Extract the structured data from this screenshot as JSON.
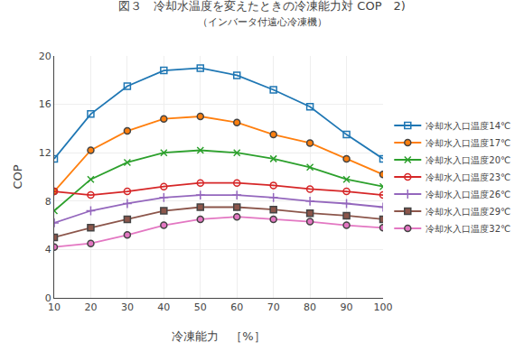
{
  "chart_data": {
    "type": "line",
    "title": "図３　冷却水温度を変えたときの冷凍能力対 COP　2)",
    "subtitle": "（インバータ付遠心冷凍機）",
    "xlabel": "冷凍能力　［%］",
    "ylabel": "COP",
    "x": [
      10,
      20,
      30,
      40,
      50,
      60,
      70,
      80,
      90,
      100
    ],
    "series": [
      {
        "name": "冷却水入口温度14℃",
        "marker": "square-open",
        "values": [
          11.5,
          15.2,
          17.5,
          18.8,
          19.0,
          18.4,
          17.2,
          15.8,
          13.5,
          11.5
        ]
      },
      {
        "name": "冷却水入口温度17℃",
        "marker": "circle",
        "values": [
          8.8,
          12.2,
          13.8,
          14.8,
          15.0,
          14.5,
          13.5,
          12.8,
          11.5,
          10.2
        ]
      },
      {
        "name": "冷却水入口温度20℃",
        "marker": "x",
        "values": [
          7.2,
          9.8,
          11.2,
          12.0,
          12.2,
          12.0,
          11.5,
          10.8,
          9.8,
          9.2
        ]
      },
      {
        "name": "冷却水入口温度23℃",
        "marker": "circle-open",
        "values": [
          8.8,
          8.5,
          8.8,
          9.2,
          9.5,
          9.5,
          9.3,
          9.0,
          8.8,
          8.5
        ]
      },
      {
        "name": "冷却水入口温度26℃",
        "marker": "cross",
        "values": [
          6.2,
          7.2,
          7.8,
          8.3,
          8.5,
          8.5,
          8.3,
          8.0,
          7.8,
          7.5
        ]
      },
      {
        "name": "冷却水入口温度29℃",
        "marker": "square",
        "values": [
          5.0,
          5.8,
          6.5,
          7.2,
          7.5,
          7.5,
          7.3,
          7.0,
          6.8,
          6.5
        ]
      },
      {
        "name": "冷却水入口温度32℃",
        "marker": "circle",
        "values": [
          4.2,
          4.5,
          5.2,
          6.0,
          6.5,
          6.7,
          6.5,
          6.3,
          6.0,
          5.8
        ]
      }
    ],
    "xlim": [
      10,
      100
    ],
    "ylim": [
      0,
      20
    ],
    "xticks": [
      10,
      20,
      30,
      40,
      50,
      60,
      70,
      80,
      90,
      100
    ],
    "yticks": [
      0,
      4,
      8,
      12,
      16,
      20
    ],
    "grid": true,
    "legend": "right"
  }
}
